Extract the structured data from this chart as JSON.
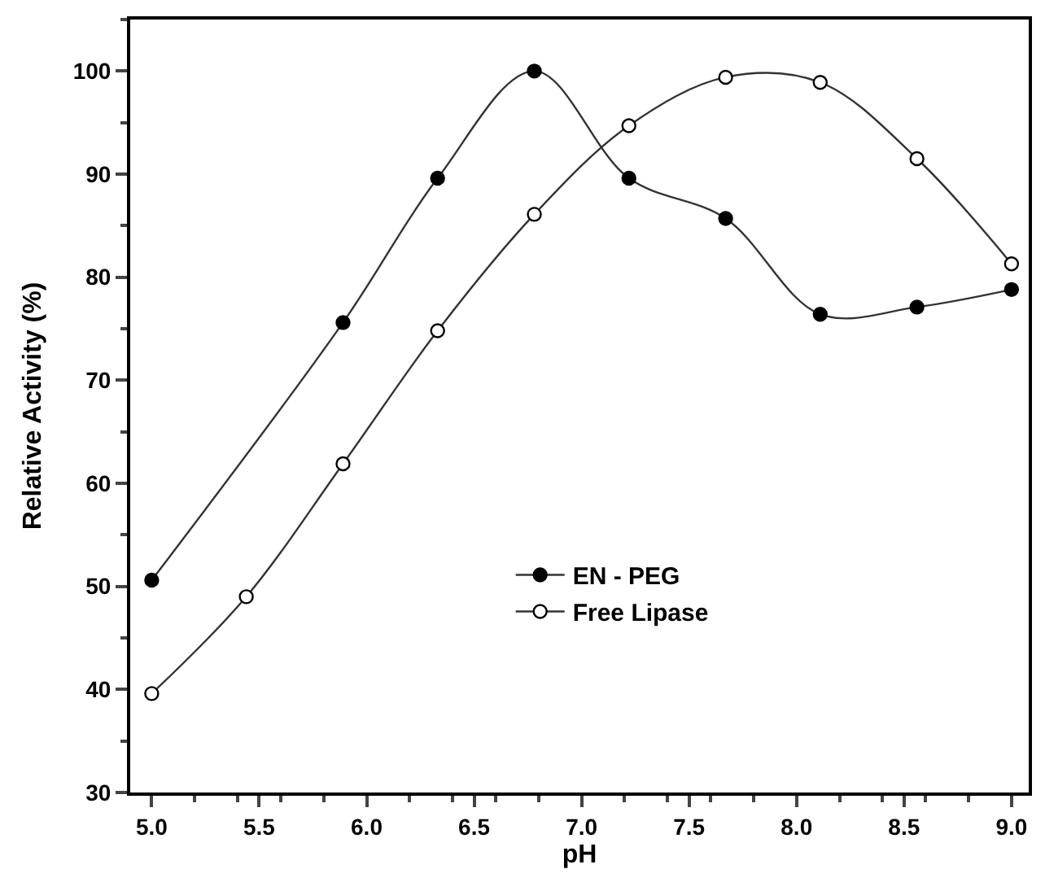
{
  "chart_data": {
    "type": "line",
    "xlabel": "pH",
    "ylabel": "Relative Activity (%)",
    "xlim": [
      4.9,
      9.08
    ],
    "xticks": [
      {
        "value": 5,
        "label": "5.0"
      },
      {
        "value": 5.5,
        "label": "5.5"
      },
      {
        "value": 6,
        "label": "6.0"
      },
      {
        "value": 6.5,
        "label": "6.5"
      },
      {
        "value": 7,
        "label": "7.0"
      },
      {
        "value": 7.5,
        "label": "7.5"
      },
      {
        "value": 8,
        "label": "8.0"
      },
      {
        "value": 8.5,
        "label": "8.5"
      },
      {
        "value": 9,
        "label": "9.0"
      }
    ],
    "ylim": [
      30,
      105
    ],
    "yticks": [
      30,
      40,
      50,
      60,
      70,
      80,
      90,
      100
    ],
    "marker": "circle",
    "line_style": "solid",
    "legend": "bottom",
    "series": [
      {
        "name": "EN - PEG",
        "color": "#000000",
        "x": [
          5.0,
          5.89,
          6.33,
          6.78,
          7.22,
          7.67,
          8.11,
          8.56,
          9.0
        ],
        "values": [
          50.6,
          75.6,
          89.6,
          100,
          89.6,
          85.7,
          76.4,
          77.1,
          78.8
        ]
      },
      {
        "name": "Free Lipase",
        "color": "#ffffff",
        "x": [
          5.0,
          5.44,
          5.89,
          6.33,
          6.78,
          7.22,
          7.67,
          8.11,
          8.56,
          9.0
        ],
        "values": [
          39.6,
          49,
          61.9,
          74.8,
          86.1,
          94.7,
          99.4,
          98.9,
          91.5,
          81.3
        ]
      }
    ]
  }
}
